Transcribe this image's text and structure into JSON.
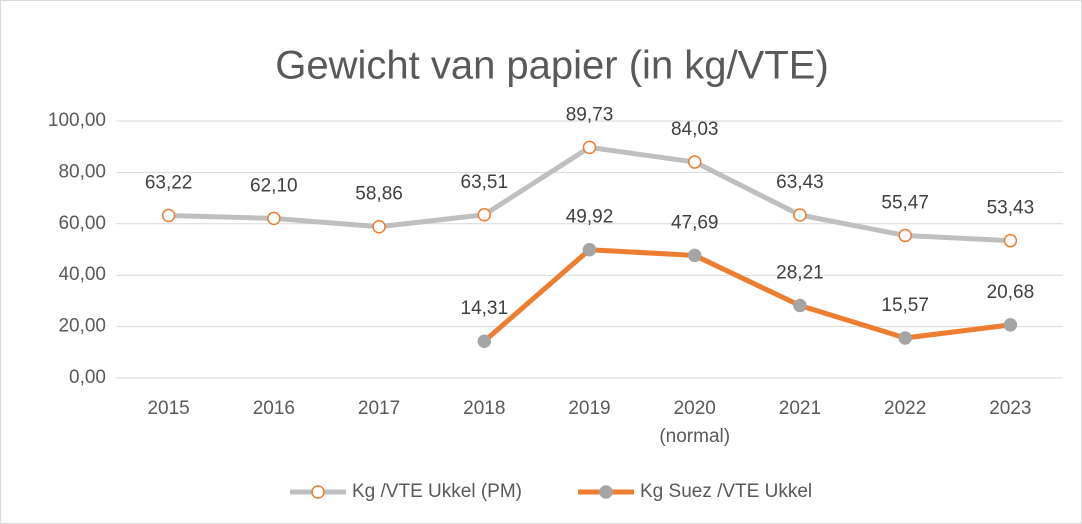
{
  "chart_data": {
    "type": "line",
    "title": "Gewicht van papier (in kg/VTE)",
    "categories": [
      "2015",
      "2016",
      "2017",
      "2018",
      "2019",
      "2020\n(normal)",
      "2021",
      "2022",
      "2023"
    ],
    "series": [
      {
        "name": "Kg /VTE Ukkel (PM)",
        "color": "#bfbfbf",
        "marker_fill": "#ffffff",
        "marker_stroke": "#ed7d31",
        "values": [
          63.22,
          62.1,
          58.86,
          63.51,
          89.73,
          84.03,
          63.43,
          55.47,
          53.43
        ],
        "value_labels": [
          "63,22",
          "62,10",
          "58,86",
          "63,51",
          "89,73",
          "84,03",
          "63,43",
          "55,47",
          "53,43"
        ]
      },
      {
        "name": "Kg Suez /VTE Ukkel",
        "color": "#ed7d31",
        "marker_fill": "#a5a5a5",
        "marker_stroke": "#a5a5a5",
        "values": [
          null,
          null,
          null,
          14.31,
          49.92,
          47.69,
          28.21,
          15.57,
          20.68
        ],
        "value_labels": [
          null,
          null,
          null,
          "14,31",
          "49,92",
          "47,69",
          "28,21",
          "15,57",
          "20,68"
        ]
      }
    ],
    "ylim": [
      0,
      100
    ],
    "yticks": [
      {
        "value": 0,
        "label": "0,00"
      },
      {
        "value": 20,
        "label": "20,00"
      },
      {
        "value": 40,
        "label": "40,00"
      },
      {
        "value": 60,
        "label": "60,00"
      },
      {
        "value": 80,
        "label": "80,00"
      },
      {
        "value": 100,
        "label": "100,00"
      }
    ],
    "grid": true,
    "legend": "bottom"
  }
}
